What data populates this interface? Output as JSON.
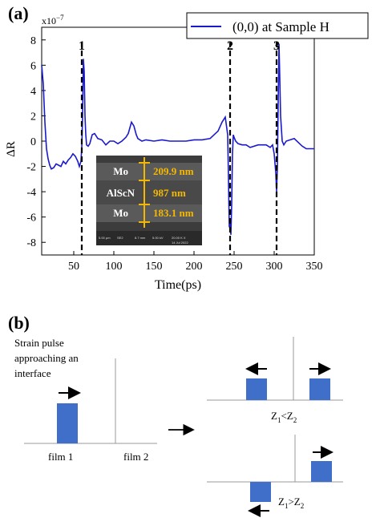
{
  "panel_a": {
    "label": "(a)",
    "y_exponent": "x10",
    "y_exponent_power": "−7"
  },
  "panel_b": {
    "label": "(b)",
    "caption": [
      "Strain pulse",
      "approaching an",
      "interface"
    ],
    "film1_label": "film 1",
    "film2_label": "film 2",
    "case_top_z1": "Z",
    "case_top_sub1": "1",
    "case_top_rel": "<Z",
    "case_top_sub2": "2",
    "case_bottom_z1": "Z",
    "case_bottom_sub1": "1",
    "case_bottom_rel": ">Z",
    "case_bottom_sub2": "2"
  },
  "inset": {
    "layers": [
      {
        "material": "Mo",
        "thickness": "209.9 nm"
      },
      {
        "material": "AlScN",
        "thickness": "987 nm"
      },
      {
        "material": "Mo",
        "thickness": "183.1 nm"
      }
    ],
    "footer": [
      "5.00 μm",
      "SE2",
      "8.7 mm",
      "5.00 kV",
      "20.00 K X",
      "14 Jul 2022"
    ]
  },
  "colors": {
    "series": "#1a1acc",
    "accent": "#f5b800",
    "pulse": "#3f6fc9"
  },
  "chart_data": {
    "type": "line",
    "title": "",
    "xlabel": "Time(ps)",
    "ylabel": "ΔR",
    "xlim": [
      10,
      350
    ],
    "ylim": [
      -9,
      9
    ],
    "xticks": [
      50,
      100,
      150,
      200,
      250,
      300,
      350
    ],
    "yticks": [
      -8,
      -6,
      -4,
      -2,
      0,
      2,
      4,
      6,
      8
    ],
    "y_scale_note": "x10^-7",
    "legend": "top-right",
    "grid": false,
    "markers": [
      {
        "label": "1",
        "x": 60
      },
      {
        "label": "2",
        "x": 245
      },
      {
        "label": "3",
        "x": 303
      }
    ],
    "series": [
      {
        "name": "(0,0) at Sample H",
        "x": [
          10,
          12,
          14,
          16,
          18,
          20,
          22,
          25,
          28,
          31,
          34,
          37,
          40,
          43,
          46,
          49,
          52,
          55,
          57,
          59,
          60,
          61,
          62,
          63,
          64,
          65,
          66,
          68,
          70,
          73,
          76,
          80,
          85,
          90,
          95,
          100,
          105,
          110,
          115,
          118,
          122,
          125,
          128,
          130,
          135,
          140,
          150,
          160,
          170,
          180,
          190,
          200,
          210,
          220,
          230,
          235,
          239,
          242,
          243,
          244,
          245,
          246,
          247,
          248,
          249,
          250,
          252,
          255,
          260,
          265,
          270,
          280,
          290,
          295,
          298,
          300,
          302,
          303,
          304,
          305,
          306,
          307,
          308,
          310,
          312,
          315,
          320,
          325,
          330,
          335,
          340,
          345,
          350
        ],
        "y": [
          6.0,
          4.5,
          1.5,
          -0.6,
          -1.4,
          -1.9,
          -2.2,
          -2.1,
          -1.8,
          -1.9,
          -2.0,
          -1.6,
          -1.8,
          -1.5,
          -1.3,
          -1.0,
          -1.2,
          -1.6,
          -2.0,
          -1.6,
          -0.5,
          2.0,
          6.5,
          5.5,
          2.0,
          0.5,
          -0.3,
          -0.4,
          -0.2,
          0.5,
          0.6,
          0.2,
          0.1,
          -0.3,
          0.0,
          0.0,
          -0.2,
          0.0,
          0.3,
          0.6,
          1.5,
          1.2,
          0.5,
          0.2,
          0.0,
          0.1,
          0.0,
          0.1,
          0.0,
          0.0,
          0.0,
          0.1,
          0.1,
          0.2,
          0.8,
          1.5,
          1.9,
          0.5,
          -3.0,
          -6.8,
          -6.5,
          -7.4,
          -5.0,
          -1.0,
          0.5,
          0.3,
          0.0,
          -0.2,
          -0.3,
          -0.3,
          -0.5,
          -0.3,
          -0.3,
          -0.5,
          -0.3,
          -1.0,
          -2.5,
          -4.0,
          -2.0,
          3.0,
          7.7,
          5.0,
          2.0,
          0.0,
          -0.3,
          0.0,
          0.1,
          0.2,
          -0.1,
          -0.4,
          -0.6,
          -0.6,
          -0.6
        ]
      }
    ]
  }
}
